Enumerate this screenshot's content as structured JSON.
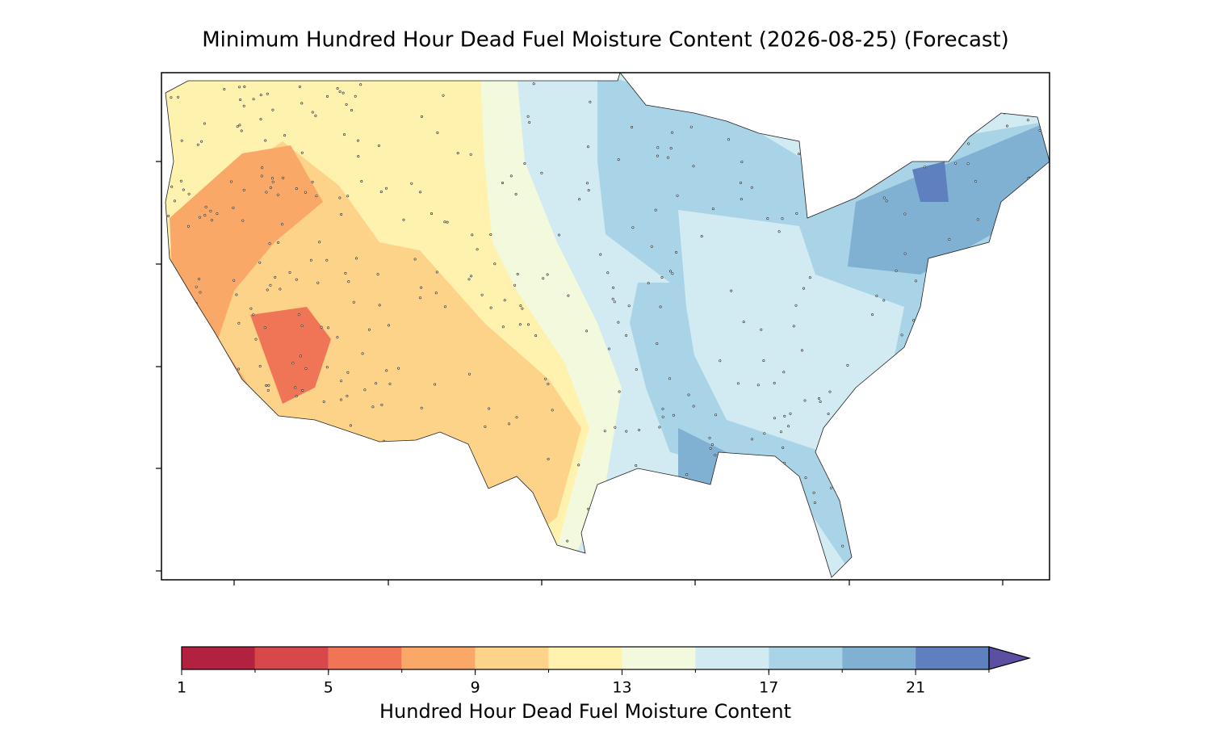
{
  "title": "Minimum Hundred Hour Dead Fuel Moisture Content (2026-08-25) (Forecast)",
  "colorbar": {
    "levels": [
      1,
      3,
      5,
      7,
      9,
      11,
      13,
      15,
      17,
      19,
      21,
      23
    ],
    "colors": [
      "#b2213f",
      "#d8484a",
      "#ef7556",
      "#f9a868",
      "#fdd38a",
      "#fef2ae",
      "#f3f9dd",
      "#d2ebf2",
      "#a9d3e6",
      "#80b1d3",
      "#5e80bf"
    ],
    "extend_color": "#5b4fa3",
    "ticks": [
      1,
      5,
      9,
      13,
      17,
      21
    ],
    "label": "Hundred Hour Dead Fuel Moisture Content"
  }
}
